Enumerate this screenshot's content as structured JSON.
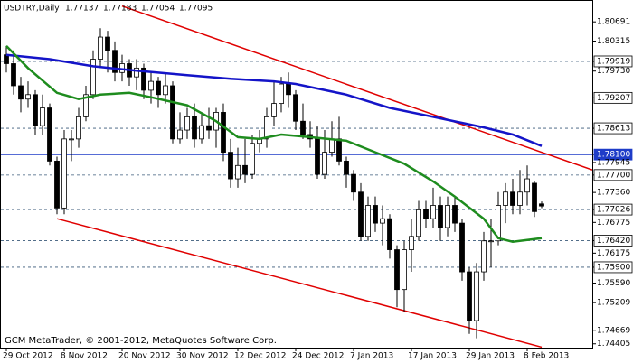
{
  "chart_data": {
    "type": "candlestick",
    "title": "USDTRY,Daily",
    "footer": "GCM MetaTrader, © 2001-2012, MetaQuotes Software Corp.",
    "candles": [
      [
        1.80048,
        1.80221,
        1.79702,
        1.79875
      ],
      [
        1.79875,
        1.80135,
        1.7927,
        1.79443
      ],
      [
        1.79443,
        1.79616,
        1.78924,
        1.79183
      ],
      [
        1.79183,
        1.79529,
        1.7901,
        1.7927
      ],
      [
        1.7927,
        1.79356,
        1.78491,
        1.78664
      ],
      [
        1.78664,
        1.7927,
        1.78491,
        1.7901
      ],
      [
        1.7901,
        1.79097,
        1.77886,
        1.77972
      ],
      [
        1.77972,
        1.78059,
        1.76934,
        1.77056
      ],
      [
        1.77056,
        1.78578,
        1.76934,
        1.78405
      ],
      [
        1.78405,
        1.78578,
        1.77972,
        1.78405
      ],
      [
        1.78405,
        1.7901,
        1.78232,
        1.78837
      ],
      [
        1.78837,
        1.79443,
        1.78751,
        1.7927
      ],
      [
        1.7927,
        1.80135,
        1.79183,
        1.79962
      ],
      [
        1.79962,
        1.80567,
        1.79789,
        1.80394
      ],
      [
        1.80394,
        1.80516,
        1.79702,
        1.80135
      ],
      [
        1.80135,
        1.80308,
        1.79529,
        1.79702
      ],
      [
        1.79702,
        1.80048,
        1.79529,
        1.79875
      ],
      [
        1.79875,
        1.79962,
        1.79443,
        1.79616
      ],
      [
        1.79616,
        1.79962,
        1.79356,
        1.79789
      ],
      [
        1.79789,
        1.79875,
        1.79183,
        1.79356
      ],
      [
        1.79356,
        1.79702,
        1.79097,
        1.79529
      ],
      [
        1.79529,
        1.79616,
        1.7901,
        1.7927
      ],
      [
        1.7927,
        1.79702,
        1.79097,
        1.79443
      ],
      [
        1.79443,
        1.79529,
        1.78318,
        1.78405
      ],
      [
        1.78405,
        1.78924,
        1.78318,
        1.78578
      ],
      [
        1.78578,
        1.7901,
        1.78405,
        1.78837
      ],
      [
        1.78837,
        1.79097,
        1.78232,
        1.78405
      ],
      [
        1.78405,
        1.78924,
        1.78318,
        1.78664
      ],
      [
        1.78664,
        1.7901,
        1.78405,
        1.78578
      ],
      [
        1.78578,
        1.7901,
        1.78232,
        1.78924
      ],
      [
        1.78924,
        1.79097,
        1.77972,
        1.78145
      ],
      [
        1.78145,
        1.78405,
        1.77453,
        1.77626
      ],
      [
        1.77626,
        1.78232,
        1.77453,
        1.77886
      ],
      [
        1.77886,
        1.78405,
        1.7754,
        1.77713
      ],
      [
        1.77713,
        1.78491,
        1.77626,
        1.78318
      ],
      [
        1.78318,
        1.78578,
        1.78145,
        1.78405
      ],
      [
        1.78405,
        1.7901,
        1.78232,
        1.78837
      ],
      [
        1.78837,
        1.79529,
        1.78664,
        1.79097
      ],
      [
        1.79097,
        1.79616,
        1.78924,
        1.79478
      ],
      [
        1.79478,
        1.79702,
        1.7901,
        1.7927
      ],
      [
        1.7927,
        1.79356,
        1.78578,
        1.78751
      ],
      [
        1.78751,
        1.79097,
        1.78405,
        1.78491
      ],
      [
        1.78491,
        1.78751,
        1.78232,
        1.78405
      ],
      [
        1.78405,
        1.78664,
        1.77626,
        1.77713
      ],
      [
        1.77713,
        1.78578,
        1.77626,
        1.78145
      ],
      [
        1.78145,
        1.78751,
        1.78059,
        1.78405
      ],
      [
        1.78405,
        1.78837,
        1.77886,
        1.77972
      ],
      [
        1.77972,
        1.78059,
        1.77453,
        1.77713
      ],
      [
        1.77713,
        1.77799,
        1.77194,
        1.77367
      ],
      [
        1.77367,
        1.7754,
        1.76415,
        1.76502
      ],
      [
        1.76502,
        1.7728,
        1.76415,
        1.77107
      ],
      [
        1.77107,
        1.7728,
        1.76588,
        1.76761
      ],
      [
        1.76761,
        1.77107,
        1.76329,
        1.76848
      ],
      [
        1.76848,
        1.76934,
        1.76069,
        1.76242
      ],
      [
        1.76242,
        1.76329,
        1.75118,
        1.75464
      ],
      [
        1.75464,
        1.76415,
        1.75031,
        1.76242
      ],
      [
        1.76242,
        1.76848,
        1.7581,
        1.76502
      ],
      [
        1.76502,
        1.77194,
        1.76415,
        1.77021
      ],
      [
        1.77021,
        1.77194,
        1.76675,
        1.76848
      ],
      [
        1.76848,
        1.77453,
        1.76675,
        1.77107
      ],
      [
        1.77107,
        1.7728,
        1.76415,
        1.76675
      ],
      [
        1.76675,
        1.7728,
        1.76502,
        1.77107
      ],
      [
        1.77107,
        1.7728,
        1.76588,
        1.76761
      ],
      [
        1.76761,
        1.76848,
        1.75637,
        1.7581
      ],
      [
        1.7581,
        1.75896,
        1.74599,
        1.74858
      ],
      [
        1.74858,
        1.75983,
        1.74512,
        1.7581
      ],
      [
        1.7581,
        1.76588,
        1.75637,
        1.76415
      ],
      [
        1.76415,
        1.76848,
        1.75896,
        1.76415
      ],
      [
        1.76415,
        1.77367,
        1.76329,
        1.77107
      ],
      [
        1.77107,
        1.7754,
        1.76761,
        1.77367
      ],
      [
        1.77367,
        1.77626,
        1.76934,
        1.77107
      ],
      [
        1.77107,
        1.77799,
        1.76934,
        1.77367
      ],
      [
        1.77367,
        1.77886,
        1.77107,
        1.77626
      ],
      [
        1.7754,
        1.77575,
        1.76883,
        1.76986
      ],
      [
        1.77137,
        1.77183,
        1.77054,
        1.77095
      ]
    ],
    "series": [
      {
        "color": "#1414c8",
        "x": [
          0,
          6,
          12,
          18,
          25,
          31,
          37,
          40,
          47,
          53,
          59,
          66,
          70,
          74
        ],
        "values": [
          1.80048,
          1.79962,
          1.79824,
          1.79737,
          1.79651,
          1.79581,
          1.79529,
          1.79478,
          1.7927,
          1.7901,
          1.78837,
          1.7863,
          1.78491,
          1.78267
        ]
      },
      {
        "color": "#1e8c1e",
        "x": [
          0,
          3,
          7,
          10,
          13,
          17,
          20,
          25,
          29,
          32,
          35,
          38,
          42,
          47,
          51,
          55,
          59,
          62,
          66,
          68,
          70,
          72,
          74
        ],
        "values": [
          1.80221,
          1.79789,
          1.79305,
          1.79183,
          1.7927,
          1.79305,
          1.79218,
          1.79062,
          1.78751,
          1.7844,
          1.78405,
          1.78491,
          1.7844,
          1.7837,
          1.78145,
          1.77921,
          1.77575,
          1.7728,
          1.76848,
          1.76467,
          1.76398,
          1.76433,
          1.76467
        ]
      }
    ],
    "trendlines": [
      {
        "color": "#e00000",
        "x": [
          16,
          81
        ],
        "values": [
          1.81,
          1.778
        ]
      },
      {
        "color": "#e00000",
        "x": [
          7,
          74
        ],
        "values": [
          1.76848,
          1.7434
        ]
      }
    ],
    "xlim": [
      -0.75,
      81
    ],
    "ylim": [
      1.7433,
      1.811
    ],
    "xticks": [
      {
        "value": 0,
        "label": "29 Oct 2012"
      },
      {
        "value": 8,
        "label": "8 Nov 2012"
      },
      {
        "value": 16,
        "label": "20 Nov 2012"
      },
      {
        "value": 24,
        "label": "30 Nov 2012"
      },
      {
        "value": 32,
        "label": "12 Dec 2012"
      },
      {
        "value": 40,
        "label": "24 Dec 2012"
      },
      {
        "value": 48,
        "label": "7 Jan 2013"
      },
      {
        "value": 56,
        "label": "17 Jan 2013"
      },
      {
        "value": 64,
        "label": "29 Jan 2013"
      },
      {
        "value": 72,
        "label": "8 Feb 2013"
      }
    ],
    "yticks": [
      1.80691,
      1.80315,
      {
        "value": 1.79919,
        "label": "1.79919",
        "level": "dashed"
      },
      {
        "value": 1.7973,
        "label": "1.79730"
      },
      {
        "value": 1.79207,
        "label": "1.79207",
        "level": "dashed"
      },
      {
        "value": 1.78613,
        "label": "1.78613",
        "level": "dashed"
      },
      {
        "value": 1.781,
        "label": "1.78100",
        "level": "solid"
      },
      1.77945,
      {
        "value": 1.777,
        "label": "1.77700",
        "level": "dashed"
      },
      {
        "value": 1.7736,
        "label": "1.77360"
      },
      {
        "value": 1.77026,
        "label": "1.77026",
        "level": "dashed"
      },
      1.76775,
      {
        "value": 1.7642,
        "label": "1.76420",
        "level": "dashed"
      },
      1.76175,
      {
        "value": 1.759,
        "label": "1.75900",
        "level": "dashed"
      },
      {
        "value": 1.7559,
        "label": "1.75590"
      },
      1.75209,
      1.74669,
      1.74405
    ],
    "level_color": "#1e3cc8"
  }
}
